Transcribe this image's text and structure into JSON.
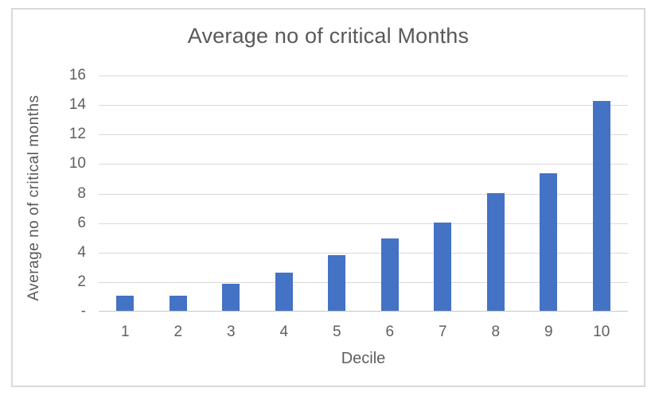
{
  "chart_data": {
    "type": "bar",
    "title": "Average no of critical Months",
    "xlabel": "Decile",
    "ylabel": "Average no of critical months",
    "categories": [
      "1",
      "2",
      "3",
      "4",
      "5",
      "6",
      "7",
      "8",
      "9",
      "10"
    ],
    "values": [
      1,
      1,
      1.85,
      2.6,
      3.75,
      4.9,
      6,
      8,
      9.3,
      14.2
    ],
    "series": [
      {
        "name": "Average no of critical months",
        "values": [
          1,
          1,
          1.85,
          2.6,
          3.75,
          4.9,
          6,
          8,
          9.3,
          14.2
        ]
      }
    ],
    "ylim": [
      0,
      16
    ],
    "ytick_step": 2,
    "ytick_labels_bottom_to_top": [
      "-",
      "2",
      "4",
      "6",
      "8",
      "10",
      "12",
      "14",
      "16"
    ],
    "grid": true,
    "legend_position": "none"
  },
  "colors": {
    "bar": "#4472c4",
    "gridline": "#d9d9d9",
    "axis_line": "#c6c6c6",
    "frame_border": "#d9d9d9",
    "title_text": "#595959",
    "tick_text": "#5f5f5f",
    "background": "#ffffff"
  }
}
